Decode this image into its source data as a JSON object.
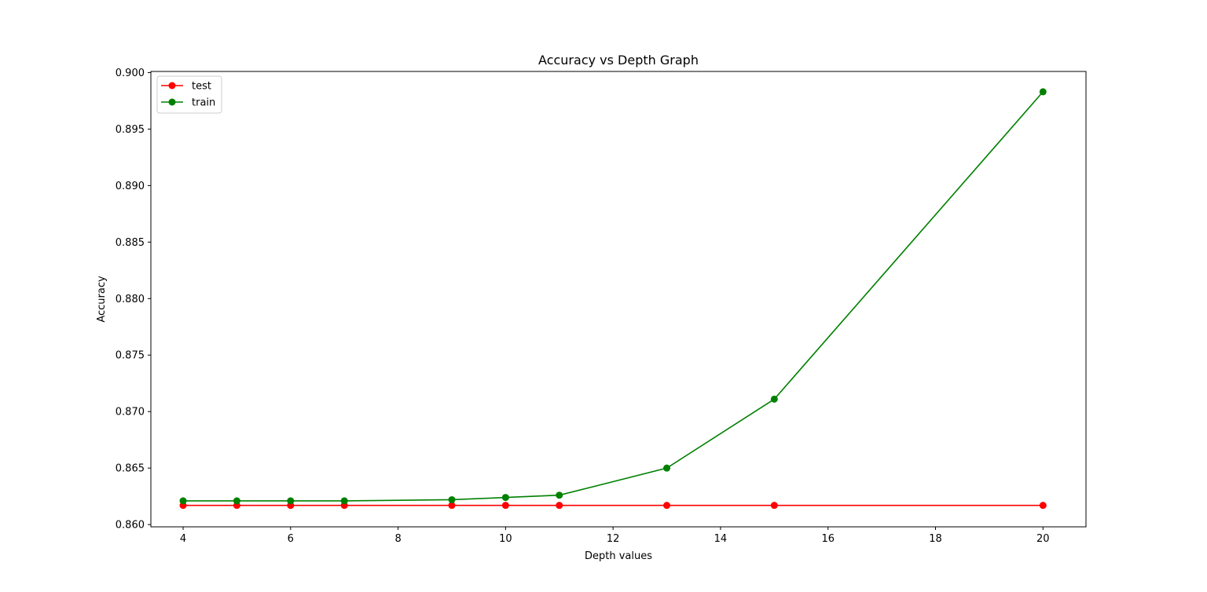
{
  "chart_data": {
    "type": "line",
    "title": "Accuracy vs Depth Graph",
    "xlabel": "Depth values",
    "ylabel": "Accuracy",
    "x": [
      4,
      5,
      6,
      7,
      9,
      10,
      11,
      13,
      15,
      20
    ],
    "xlim": [
      3.4,
      20.8
    ],
    "ylim": [
      0.8598,
      0.9001
    ],
    "xticks": [
      4,
      6,
      8,
      10,
      12,
      14,
      16,
      18,
      20
    ],
    "yticks": [
      0.86,
      0.865,
      0.87,
      0.875,
      0.88,
      0.885,
      0.89,
      0.895,
      0.9
    ],
    "ytick_labels": [
      "0.860",
      "0.865",
      "0.870",
      "0.875",
      "0.880",
      "0.885",
      "0.890",
      "0.895",
      "0.900"
    ],
    "grid": false,
    "legend_position": "top-left",
    "series": [
      {
        "name": "test",
        "color": "#ff0000",
        "marker": "circle",
        "values": [
          0.8617,
          0.8617,
          0.8617,
          0.8617,
          0.8617,
          0.8617,
          0.8617,
          0.8617,
          0.8617,
          0.8617
        ]
      },
      {
        "name": "train",
        "color": "#008000",
        "marker": "circle",
        "values": [
          0.8621,
          0.8621,
          0.8621,
          0.8621,
          0.8622,
          0.8624,
          0.8626,
          0.865,
          0.8711,
          0.8983
        ]
      }
    ]
  }
}
